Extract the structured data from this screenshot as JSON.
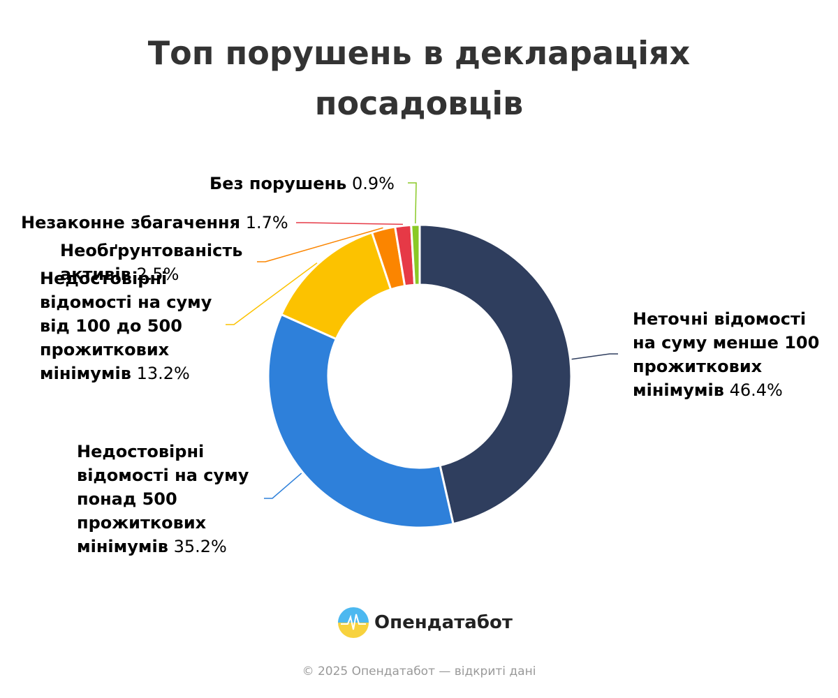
{
  "chart_data": {
    "type": "donut",
    "title": "Топ порушень в деклараціях посадовців",
    "categories": [
      "Неточні відомості на суму менше 100 прожиткових мінімумів",
      "Недостовірні відомості на суму понад 500 прожиткових мінімумів",
      "Недостовірні відомості на суму від 100 до 500 прожиткових мінімумів",
      "Необґрунтованість активів",
      "Незаконне збагачення",
      "Без порушень"
    ],
    "values": [
      46.4,
      35.2,
      13.2,
      2.5,
      1.7,
      0.9
    ],
    "value_labels": [
      "46.4%",
      "35.2%",
      "13.2%",
      "2.5%",
      "1.7%",
      "0.9%"
    ],
    "colors": [
      "#2f3e5e",
      "#2e80da",
      "#fcc200",
      "#fb8500",
      "#e63946",
      "#8ac926"
    ]
  },
  "footer": {
    "logo": "Опендатабот",
    "copyright": "© 2025 Опендатабот — відкриті дані"
  }
}
